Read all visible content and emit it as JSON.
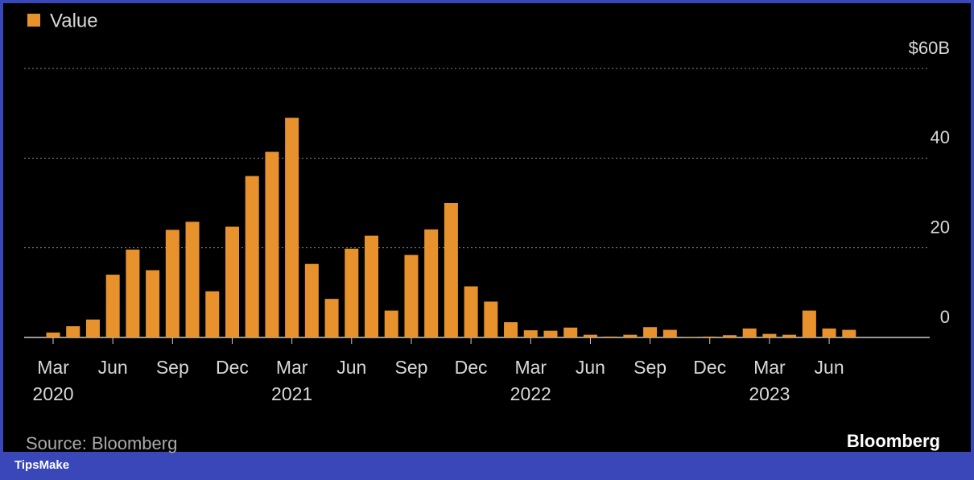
{
  "chart_data": {
    "type": "bar",
    "categories": [
      "Mar 2020",
      null,
      null,
      "Jun",
      null,
      null,
      "Sep",
      null,
      null,
      "Dec",
      null,
      null,
      "Mar 2021",
      null,
      null,
      "Jun",
      null,
      null,
      "Sep",
      null,
      null,
      "Dec",
      null,
      null,
      "Mar 2022",
      null,
      null,
      "Jun",
      null,
      null,
      "Sep",
      null,
      null,
      "Dec",
      null,
      null,
      "Mar 2023",
      null,
      null,
      "Jun",
      null
    ],
    "series": [
      {
        "name": "Value",
        "color": "#e8922e",
        "values": [
          1.1,
          2.5,
          4,
          14,
          19.6,
          15,
          24,
          25.8,
          10.3,
          24.7,
          36,
          41.4,
          49,
          16.4,
          8.6,
          19.8,
          22.7,
          6,
          18.4,
          24.1,
          30,
          11.4,
          8,
          3.4,
          1.6,
          1.5,
          2.2,
          0.6,
          0.2,
          0.6,
          2.3,
          1.7,
          0.1,
          0.2,
          0.5,
          2,
          0.8,
          0.6,
          6,
          2,
          1.7
        ]
      }
    ],
    "ylim": [
      0,
      60
    ],
    "yticks": [
      0,
      20,
      40,
      {
        "value": 60,
        "label": "$60B"
      }
    ],
    "grid": true,
    "source": "Source: Bloomberg",
    "logo": "Bloomberg"
  },
  "footer": {
    "brand": "TipsMake"
  }
}
